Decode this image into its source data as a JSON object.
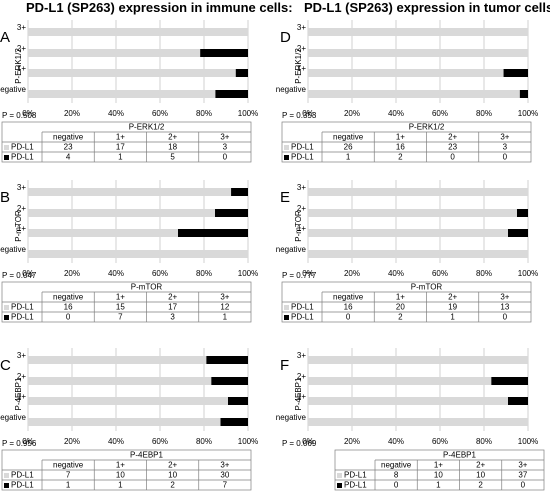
{
  "titles": {
    "left": "PD-L1 (SP263) expression in immune cells:",
    "right": "PD-L1 (SP263) expression in tumor cells:"
  },
  "colors": {
    "positive": "#000000",
    "negative": "#d9d9d9",
    "grid": "#bfbfbf"
  },
  "chart_data": [
    {
      "panel": "A",
      "type": "bar",
      "orientation": "horizontal",
      "stacked": true,
      "ylabel": "P-ERK1/2",
      "pvalue": "P = 0.508",
      "table_header": "P-ERK1/2",
      "categories": [
        "negative",
        "1+",
        "2+",
        "3+"
      ],
      "xticks": [
        "0%",
        "20%",
        "40%",
        "60%",
        "80%",
        "100%"
      ],
      "series": [
        {
          "name": "PD-L1",
          "values": [
            23,
            17,
            18,
            3
          ]
        },
        {
          "name": "PD-L1",
          "values": [
            4,
            1,
            5,
            0
          ]
        }
      ]
    },
    {
      "panel": "B",
      "type": "bar",
      "orientation": "horizontal",
      "stacked": true,
      "ylabel": "P-mTOR",
      "pvalue": "P = 0.047",
      "table_header": "P-mTOR",
      "categories": [
        "negative",
        "1+",
        "2+",
        "3+"
      ],
      "xticks": [
        "0%",
        "20%",
        "40%",
        "60%",
        "80%",
        "100%"
      ],
      "series": [
        {
          "name": "PD-L1",
          "values": [
            16,
            15,
            17,
            12
          ]
        },
        {
          "name": "PD-L1",
          "values": [
            0,
            7,
            3,
            1
          ]
        }
      ]
    },
    {
      "panel": "C",
      "type": "bar",
      "orientation": "horizontal",
      "stacked": true,
      "ylabel": "P-4EBP1",
      "pvalue": "P = 0.956",
      "table_header": "P-4EBP1",
      "categories": [
        "negative",
        "1+",
        "2+",
        "3+"
      ],
      "xticks": [
        "0%",
        "20%",
        "40%",
        "60%",
        "80%",
        "100%"
      ],
      "series": [
        {
          "name": "PD-L1",
          "values": [
            7,
            10,
            10,
            30
          ]
        },
        {
          "name": "PD-L1",
          "values": [
            1,
            1,
            2,
            7
          ]
        }
      ]
    },
    {
      "panel": "D",
      "type": "bar",
      "orientation": "horizontal",
      "stacked": true,
      "ylabel": "P-ERK1/2",
      "pvalue": "P = 0.353",
      "table_header": "P-ERK1/2",
      "categories": [
        "negative",
        "1+",
        "2+",
        "3+"
      ],
      "xticks": [
        "0%",
        "20%",
        "40%",
        "60%",
        "80%",
        "100%"
      ],
      "series": [
        {
          "name": "PD-L1",
          "values": [
            26,
            16,
            23,
            3
          ]
        },
        {
          "name": "PD-L1",
          "values": [
            1,
            2,
            0,
            0
          ]
        }
      ]
    },
    {
      "panel": "E",
      "type": "bar",
      "orientation": "horizontal",
      "stacked": true,
      "ylabel": "P-mTOR",
      "pvalue": "P = 0.777",
      "table_header": "P-mTOR",
      "categories": [
        "negative",
        "1+",
        "2+",
        "3+"
      ],
      "xticks": [
        "0%",
        "20%",
        "40%",
        "60%",
        "80%",
        "100%"
      ],
      "series": [
        {
          "name": "PD-L1",
          "values": [
            16,
            20,
            19,
            13
          ]
        },
        {
          "name": "PD-L1",
          "values": [
            0,
            2,
            1,
            0
          ]
        }
      ]
    },
    {
      "panel": "F",
      "type": "bar",
      "orientation": "horizontal",
      "stacked": true,
      "ylabel": "P-4EBP1",
      "pvalue": "P = 0.069",
      "table_header": "P-4EBP1",
      "categories": [
        "negative",
        "1+",
        "2+",
        "3+"
      ],
      "xticks": [
        "0%",
        "20%",
        "40%",
        "60%",
        "80%",
        "100%"
      ],
      "series": [
        {
          "name": "PD-L1",
          "values": [
            8,
            10,
            10,
            37
          ]
        },
        {
          "name": "PD-L1",
          "values": [
            0,
            1,
            2,
            0
          ]
        }
      ]
    }
  ]
}
